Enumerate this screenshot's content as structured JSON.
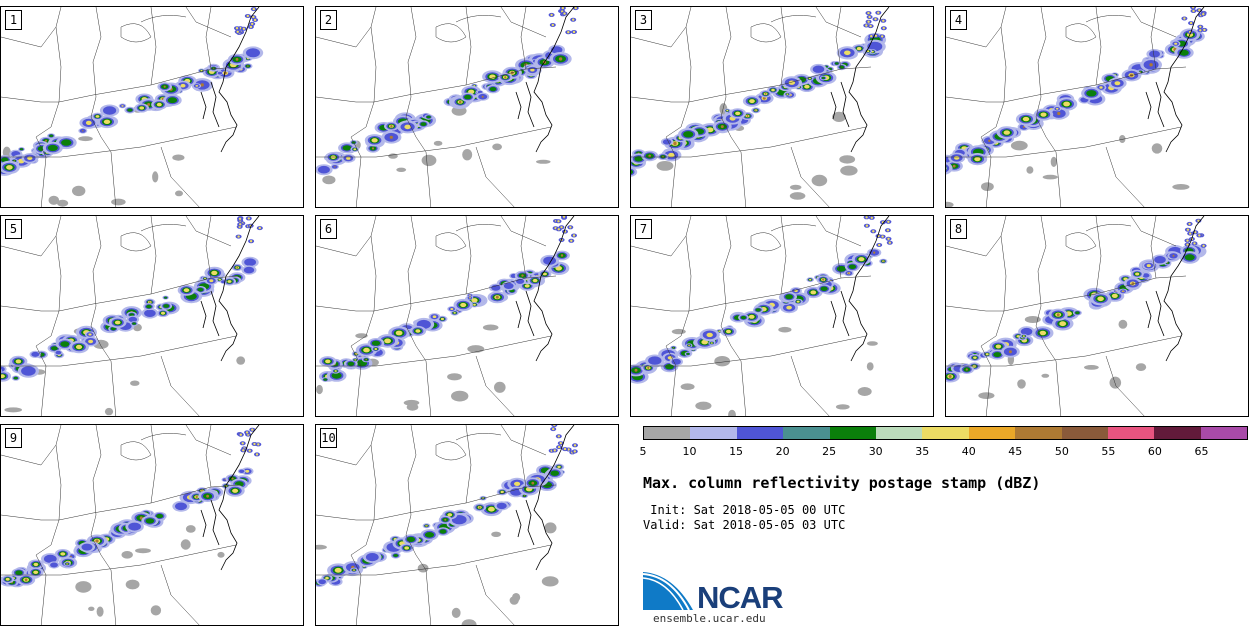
{
  "panels": [
    {
      "label": "1"
    },
    {
      "label": "2"
    },
    {
      "label": "3"
    },
    {
      "label": "4"
    },
    {
      "label": "5"
    },
    {
      "label": "6"
    },
    {
      "label": "7"
    },
    {
      "label": "8"
    },
    {
      "label": "9"
    },
    {
      "label": "10"
    }
  ],
  "colorbar": {
    "colors": [
      "#a6a6a6",
      "#b3b8ea",
      "#4f55d6",
      "#4a9090",
      "#0b7f0b",
      "#bbdcbb",
      "#ecdc64",
      "#eaa828",
      "#ae7a33",
      "#8a5a3a",
      "#e85480",
      "#621a3a",
      "#a84aa8"
    ],
    "ticks": [
      "5",
      "10",
      "15",
      "20",
      "25",
      "30",
      "35",
      "40",
      "45",
      "50",
      "55",
      "60",
      "65"
    ]
  },
  "title": "Max. column reflectivity postage stamp (dBZ)",
  "init": " Init: Sat 2018-05-05 00 UTC",
  "valid": "Valid: Sat 2018-05-05 03 UTC",
  "logo": {
    "text": "NCAR",
    "url": "ensemble.ucar.edu"
  }
}
